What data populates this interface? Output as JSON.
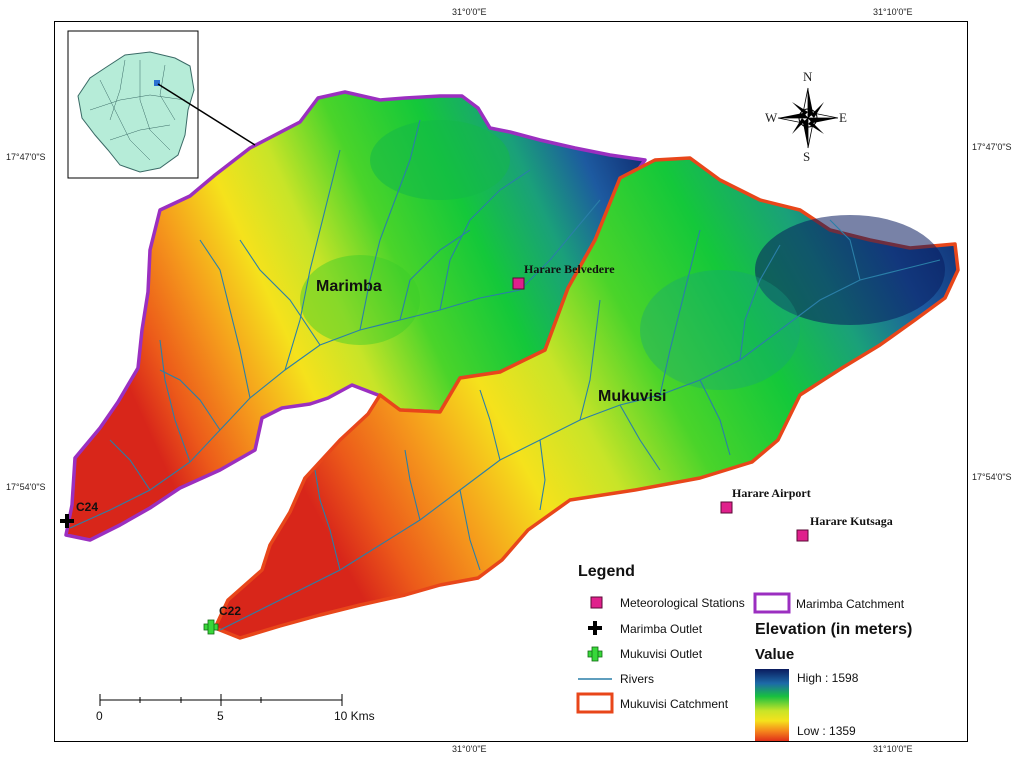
{
  "coordinates": {
    "top_lon": "31°0'0\"E",
    "top_lon2": "31°10'0\"E",
    "bottom_lon": "31°0'0\"E",
    "bottom_lon2": "31°10'0\"E",
    "left_lat1": "17°47'0\"S",
    "left_lat2": "17°54'0\"S",
    "right_lat1": "17°47'0\"S",
    "right_lat2": "17°54'0\"S"
  },
  "catchments": {
    "marimba": "Marimba",
    "mukuvisi": "Mukuvisi"
  },
  "stations": [
    {
      "name": "Harare Belvedere"
    },
    {
      "name": "Harare Airport"
    },
    {
      "name": "Harare Kutsaga"
    }
  ],
  "outlets": {
    "c24": "C24",
    "c22": "C22"
  },
  "compass": {
    "n": "N",
    "s": "S",
    "e": "E",
    "w": "W"
  },
  "legend": {
    "title": "Legend",
    "met_stations": "Meteorological Stations",
    "marimba_outlet": "Marimba Outlet",
    "mukuvisi_outlet": "Mukuvisi Outlet",
    "rivers": "Rivers",
    "mukuvisi_catchment": "Mukuvisi Catchment",
    "marimba_catchment": "Marimba Catchment",
    "elevation_title": "Elevation (in meters)",
    "value_label": "Value",
    "high": "High : 1598",
    "low": "Low : 1359"
  },
  "scale_bar": {
    "t0": "0",
    "t1": "5",
    "t2": "10 Kms"
  },
  "colors": {
    "marimba_outline": "#9b2fc0",
    "mukuvisi_outline": "#e8461a",
    "station": "#e0208c",
    "river": "#2a7fa8",
    "elev_high": "#0a1b5e",
    "elev_low": "#e8301a"
  }
}
